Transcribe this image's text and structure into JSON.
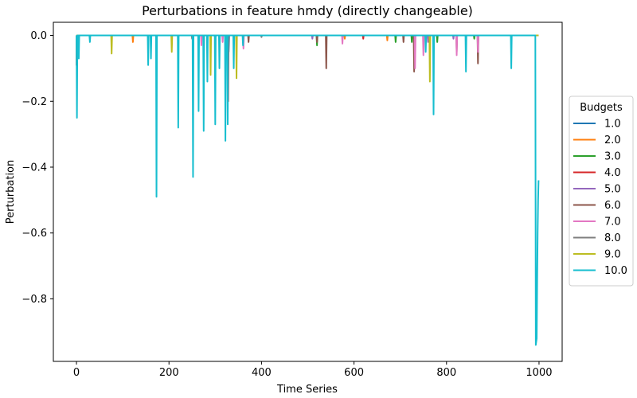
{
  "chart_data": {
    "type": "line",
    "title": "Perturbations in feature hmdy (directly changeable)",
    "xlabel": "Time Series",
    "ylabel": "Perturbation",
    "xlim": [
      -50,
      1050
    ],
    "ylim": [
      -0.99,
      0.04
    ],
    "xticks": [
      0,
      200,
      400,
      600,
      800,
      1000
    ],
    "xtick_labels": [
      "0",
      "200",
      "400",
      "600",
      "800",
      "1000"
    ],
    "yticks": [
      0.0,
      -0.2,
      -0.4,
      -0.6,
      -0.8
    ],
    "ytick_labels": [
      "0.0",
      "−0.2",
      "−0.4",
      "−0.6",
      "−0.8"
    ],
    "legend": {
      "title": "Budgets",
      "placement": "outside-right"
    },
    "x_max_index": 999,
    "series": [
      {
        "name": "1.0",
        "color": "#1f77b4",
        "spikes": [
          [
            1,
            -0.03
          ],
          [
            329,
            -0.05
          ]
        ]
      },
      {
        "name": "2.0",
        "color": "#ff7f0e",
        "spikes": [
          [
            122,
            -0.02
          ],
          [
            580,
            -0.01
          ],
          [
            672,
            -0.015
          ]
        ]
      },
      {
        "name": "3.0",
        "color": "#2ca02c",
        "spikes": [
          [
            520,
            -0.03
          ],
          [
            690,
            -0.02
          ],
          [
            725,
            -0.02
          ],
          [
            780,
            -0.02
          ],
          [
            860,
            -0.01
          ]
        ]
      },
      {
        "name": "4.0",
        "color": "#d62728",
        "spikes": [
          [
            328,
            -0.2
          ],
          [
            620,
            -0.01
          ]
        ]
      },
      {
        "name": "5.0",
        "color": "#9467bd",
        "spikes": [
          [
            510,
            -0.01
          ],
          [
            760,
            -0.02
          ],
          [
            815,
            -0.01
          ]
        ]
      },
      {
        "name": "6.0",
        "color": "#8c564b",
        "spikes": [
          [
            0,
            -0.09
          ],
          [
            372,
            -0.02
          ],
          [
            520,
            -0.02
          ],
          [
            540,
            -0.1
          ],
          [
            707,
            -0.02
          ],
          [
            730,
            -0.11
          ],
          [
            822,
            -0.05
          ],
          [
            868,
            -0.085
          ]
        ]
      },
      {
        "name": "7.0",
        "color": "#e377c2",
        "spikes": [
          [
            1,
            -0.02
          ],
          [
            270,
            -0.03
          ],
          [
            316,
            -0.02
          ],
          [
            361,
            -0.04
          ],
          [
            575,
            -0.025
          ],
          [
            732,
            -0.1
          ],
          [
            750,
            -0.06
          ],
          [
            822,
            -0.06
          ],
          [
            868,
            -0.05
          ]
        ]
      },
      {
        "name": "8.0",
        "color": "#7f7f7f",
        "spikes": [
          [
            250,
            -0.01
          ],
          [
            300,
            -0.01
          ],
          [
            400,
            -0.005
          ]
        ]
      },
      {
        "name": "9.0",
        "color": "#bcbd22",
        "spikes": [
          [
            76,
            -0.055
          ],
          [
            206,
            -0.05
          ],
          [
            290,
            -0.12
          ],
          [
            346,
            -0.13
          ],
          [
            764,
            -0.14
          ]
        ]
      },
      {
        "name": "10.0",
        "color": "#17becf",
        "spikes": [
          [
            1,
            -0.25
          ],
          [
            5,
            -0.07
          ],
          [
            29,
            -0.02
          ],
          [
            155,
            -0.09
          ],
          [
            161,
            -0.07
          ],
          [
            173,
            -0.49
          ],
          [
            220,
            -0.28
          ],
          [
            252,
            -0.43
          ],
          [
            264,
            -0.23
          ],
          [
            275,
            -0.29
          ],
          [
            283,
            -0.14
          ],
          [
            300,
            -0.27
          ],
          [
            309,
            -0.1
          ],
          [
            322,
            -0.32
          ],
          [
            327,
            -0.27
          ],
          [
            340,
            -0.1
          ],
          [
            360,
            -0.03
          ],
          [
            755,
            -0.05
          ],
          [
            772,
            -0.24
          ],
          [
            842,
            -0.11
          ],
          [
            940,
            -0.1
          ]
        ],
        "tail": [
          [
            992,
            0.0
          ],
          [
            993,
            -0.94
          ],
          [
            995,
            -0.92
          ],
          [
            996,
            -0.75
          ],
          [
            997,
            -0.6
          ],
          [
            998,
            -0.5
          ],
          [
            999,
            -0.44
          ]
        ]
      }
    ]
  }
}
